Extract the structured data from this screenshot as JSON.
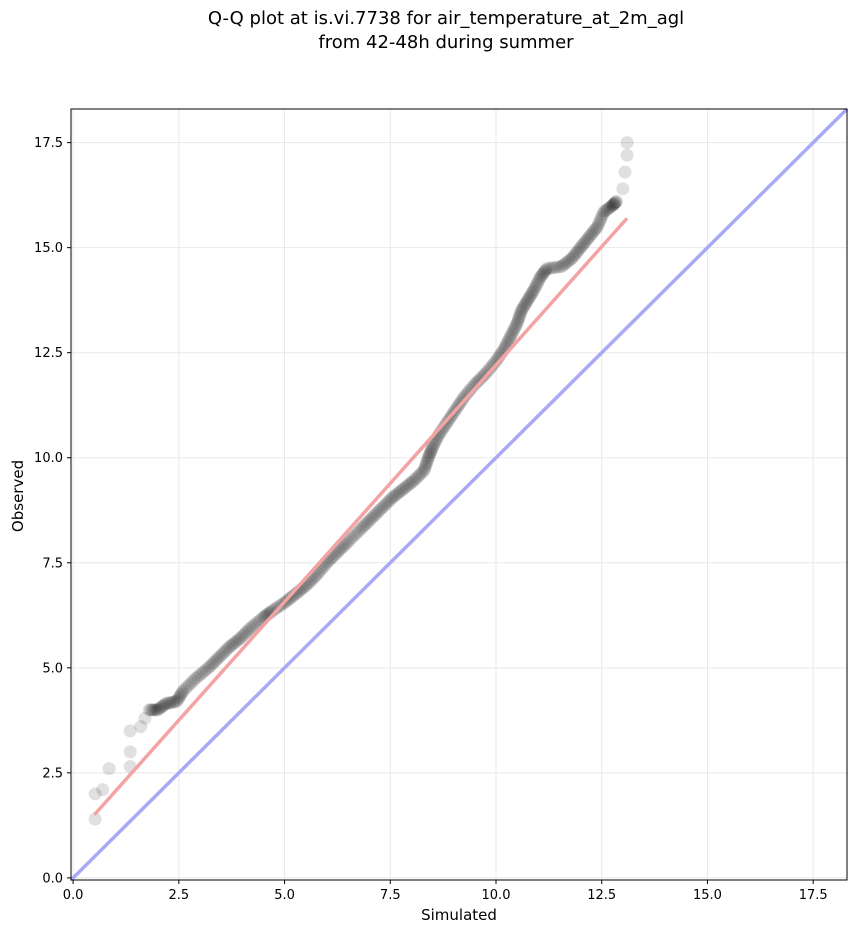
{
  "chart_data": {
    "type": "scatter",
    "title_lines": [
      "Q-Q plot at is.vi.7738 for air_temperature_at_2m_agl",
      "from 42-48h during summer"
    ],
    "xlabel": "Simulated",
    "ylabel": "Observed",
    "xlim": [
      -0.05,
      18.3
    ],
    "ylim": [
      -0.05,
      18.3
    ],
    "xticks": [
      "0.0",
      "2.5",
      "5.0",
      "7.5",
      "10.0",
      "12.5",
      "15.0",
      "17.5"
    ],
    "yticks": [
      "0.0",
      "2.5",
      "5.0",
      "7.5",
      "10.0",
      "12.5",
      "15.0",
      "17.5"
    ],
    "tick_values": [
      0,
      2.5,
      5,
      7.5,
      10,
      12.5,
      15,
      17.5
    ],
    "grid": true,
    "series": [
      {
        "kind": "points",
        "color": "#000000",
        "points": [
          [
            0.52,
            1.4
          ],
          [
            0.52,
            2.0
          ],
          [
            0.7,
            2.1
          ],
          [
            0.85,
            2.6
          ],
          [
            1.35,
            2.65
          ],
          [
            1.35,
            3.0
          ],
          [
            1.35,
            3.5
          ],
          [
            1.6,
            3.6
          ],
          [
            1.7,
            3.8
          ],
          [
            1.8,
            4.0
          ],
          [
            2.0,
            4.0
          ],
          [
            2.2,
            4.15
          ],
          [
            2.45,
            4.2
          ],
          [
            2.6,
            4.45
          ],
          [
            2.9,
            4.75
          ],
          [
            3.2,
            5.0
          ],
          [
            3.45,
            5.25
          ],
          [
            3.7,
            5.5
          ],
          [
            3.95,
            5.7
          ],
          [
            4.2,
            5.95
          ],
          [
            4.5,
            6.2
          ],
          [
            4.7,
            6.35
          ],
          [
            5.0,
            6.55
          ],
          [
            5.25,
            6.75
          ],
          [
            5.5,
            6.95
          ],
          [
            5.75,
            7.2
          ],
          [
            6.0,
            7.5
          ],
          [
            6.25,
            7.75
          ],
          [
            6.5,
            8.0
          ],
          [
            6.8,
            8.3
          ],
          [
            7.05,
            8.55
          ],
          [
            7.3,
            8.8
          ],
          [
            7.55,
            9.05
          ],
          [
            7.8,
            9.25
          ],
          [
            8.05,
            9.45
          ],
          [
            8.3,
            9.7
          ],
          [
            8.4,
            10.0
          ],
          [
            8.5,
            10.25
          ],
          [
            8.65,
            10.55
          ],
          [
            8.85,
            10.85
          ],
          [
            9.05,
            11.15
          ],
          [
            9.25,
            11.45
          ],
          [
            9.5,
            11.75
          ],
          [
            9.75,
            12.0
          ],
          [
            10.0,
            12.3
          ],
          [
            10.2,
            12.6
          ],
          [
            10.35,
            12.9
          ],
          [
            10.5,
            13.2
          ],
          [
            10.6,
            13.5
          ],
          [
            10.75,
            13.75
          ],
          [
            10.9,
            14.0
          ],
          [
            11.05,
            14.3
          ],
          [
            11.2,
            14.5
          ],
          [
            11.55,
            14.55
          ],
          [
            11.8,
            14.75
          ],
          [
            12.0,
            15.0
          ],
          [
            12.2,
            15.25
          ],
          [
            12.4,
            15.5
          ],
          [
            12.55,
            15.85
          ],
          [
            12.75,
            16.0
          ],
          [
            12.85,
            16.1
          ],
          [
            13.0,
            16.4
          ],
          [
            13.05,
            16.8
          ],
          [
            13.1,
            17.2
          ],
          [
            13.1,
            17.5
          ]
        ]
      },
      {
        "kind": "line",
        "name": "",
        "color": "#f4a3a3",
        "points": [
          [
            0.5,
            1.5
          ],
          [
            13.1,
            15.7
          ]
        ]
      },
      {
        "kind": "line",
        "name": "",
        "color": "#a9a9f5",
        "points": [
          [
            -0.05,
            -0.05
          ],
          [
            18.3,
            18.3
          ]
        ]
      }
    ]
  }
}
